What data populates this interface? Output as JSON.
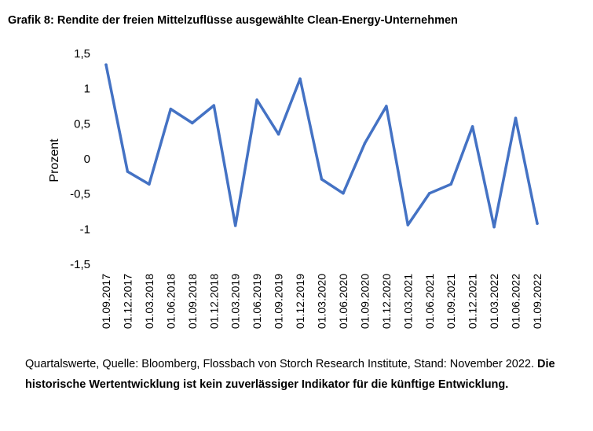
{
  "chart_data": {
    "type": "line",
    "title": "Grafik 8: Rendite der freien Mittelzuflüsse ausgewählte Clean-Energy-Unternehmen",
    "xlabel": "",
    "ylabel": "Prozent",
    "ylim": [
      -1.5,
      1.5
    ],
    "yticks": [
      -1.5,
      -1,
      -0.5,
      0,
      0.5,
      1,
      1.5
    ],
    "ytick_labels": [
      "-1,5",
      "-1",
      "-0,5",
      "0",
      "0,5",
      "1",
      "1,5"
    ],
    "categories": [
      "01.09.2017",
      "01.12.2017",
      "01.03.2018",
      "01.06.2018",
      "01.09.2018",
      "01.12.2018",
      "01.03.2019",
      "01.06.2019",
      "01.09.2019",
      "01.12.2019",
      "01.03.2020",
      "01.06.2020",
      "01.09.2020",
      "01.12.2020",
      "01.03.2021",
      "01.06.2021",
      "01.09.2021",
      "01.12.2021",
      "01.03.2022",
      "01.06.2022",
      "01.09.2022"
    ],
    "series": [
      {
        "color": "#4472C4",
        "values": [
          1.34,
          -0.18,
          -0.36,
          0.71,
          0.51,
          0.76,
          -0.95,
          0.84,
          0.35,
          1.14,
          -0.29,
          -0.49,
          0.22,
          0.75,
          -0.94,
          -0.49,
          -0.36,
          0.46,
          -0.97,
          0.58,
          -0.92
        ]
      }
    ],
    "grid": false,
    "legend": "none"
  },
  "footer": {
    "source": "Quartalswerte, Quelle: Bloomberg, Flossbach von Storch Research Institute, Stand: November 2022.",
    "disclaimer": "Die historische Wertentwicklung ist kein zuverlässiger Indikator für die künftige Entwicklung."
  }
}
